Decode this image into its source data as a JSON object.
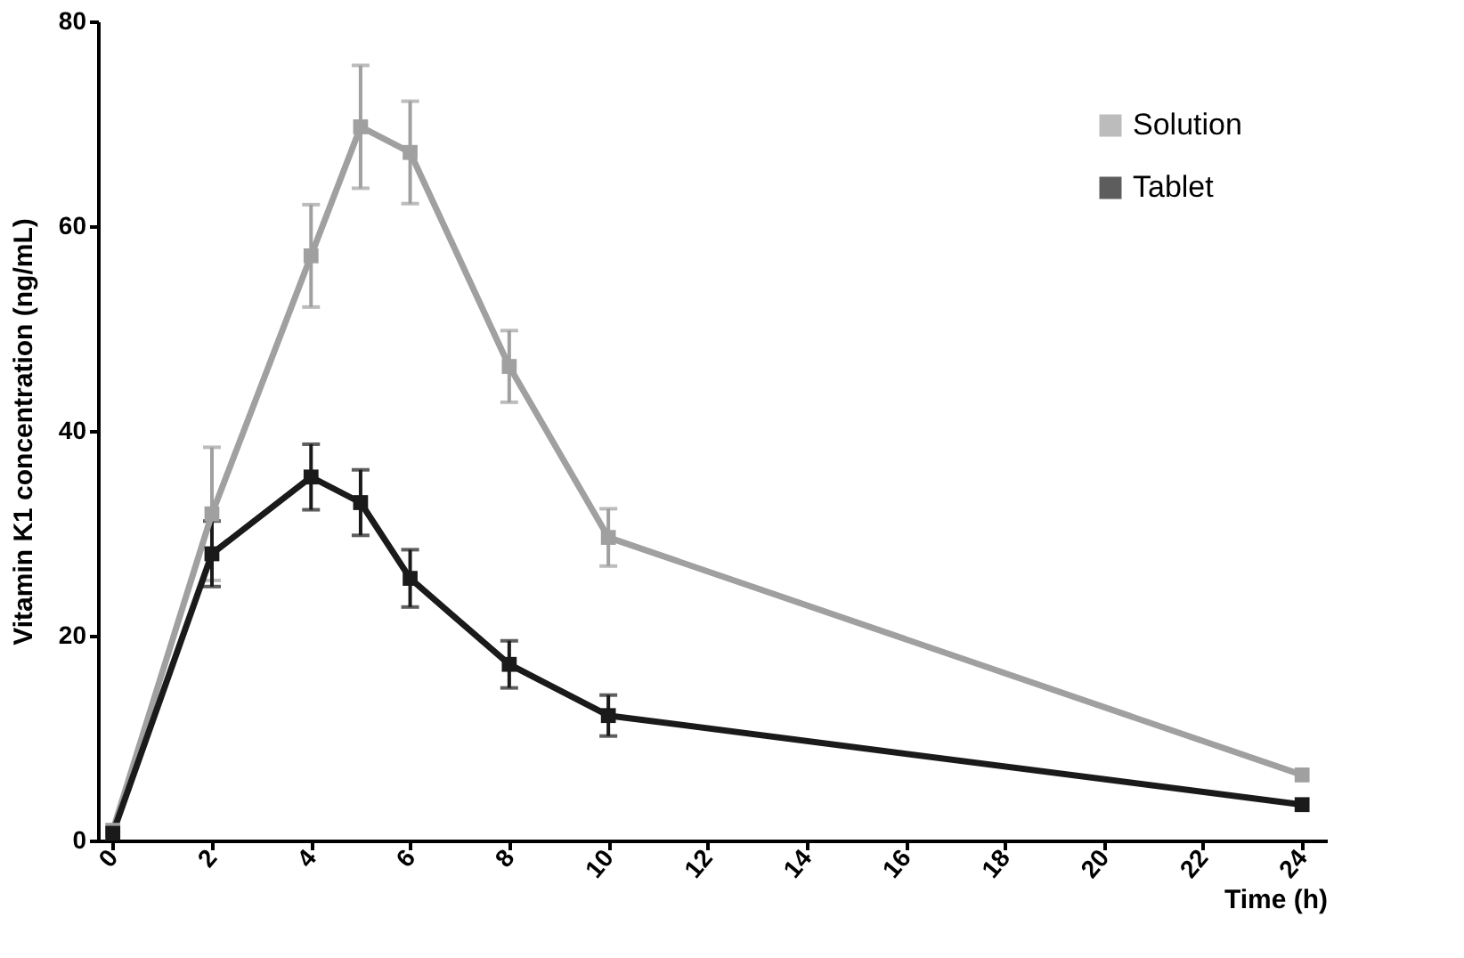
{
  "chart_data": {
    "type": "line",
    "xlabel": "Time (h)",
    "ylabel": "Vitamin K1 concentration (ng/mL)",
    "x": [
      0,
      2,
      4,
      5,
      6,
      8,
      10,
      24
    ],
    "series": [
      {
        "name": "Solution",
        "color": "#a0a0a0",
        "values": [
          1,
          31.9,
          57.1,
          69.7,
          67.2,
          46.3,
          29.6,
          6.4
        ],
        "errors": [
          null,
          6.5,
          5,
          6,
          5,
          3.5,
          2.8,
          null
        ]
      },
      {
        "name": "Tablet",
        "color": "#1a1a1a",
        "values": [
          0.7,
          28,
          35.5,
          33,
          25.6,
          17.2,
          12.2,
          3.5
        ],
        "errors": [
          null,
          3.2,
          3.2,
          3.2,
          2.8,
          2.3,
          2,
          null
        ]
      }
    ],
    "xlim": [
      -0.3,
      24.5
    ],
    "xticks": [
      0,
      2,
      4,
      6,
      8,
      10,
      12,
      14,
      16,
      18,
      20,
      22,
      24
    ],
    "ylim": [
      0,
      80
    ],
    "yticks": [
      0,
      20,
      40,
      60,
      80
    ],
    "grid": false,
    "legend": "top right",
    "marker": "square",
    "line_style": "solid"
  }
}
